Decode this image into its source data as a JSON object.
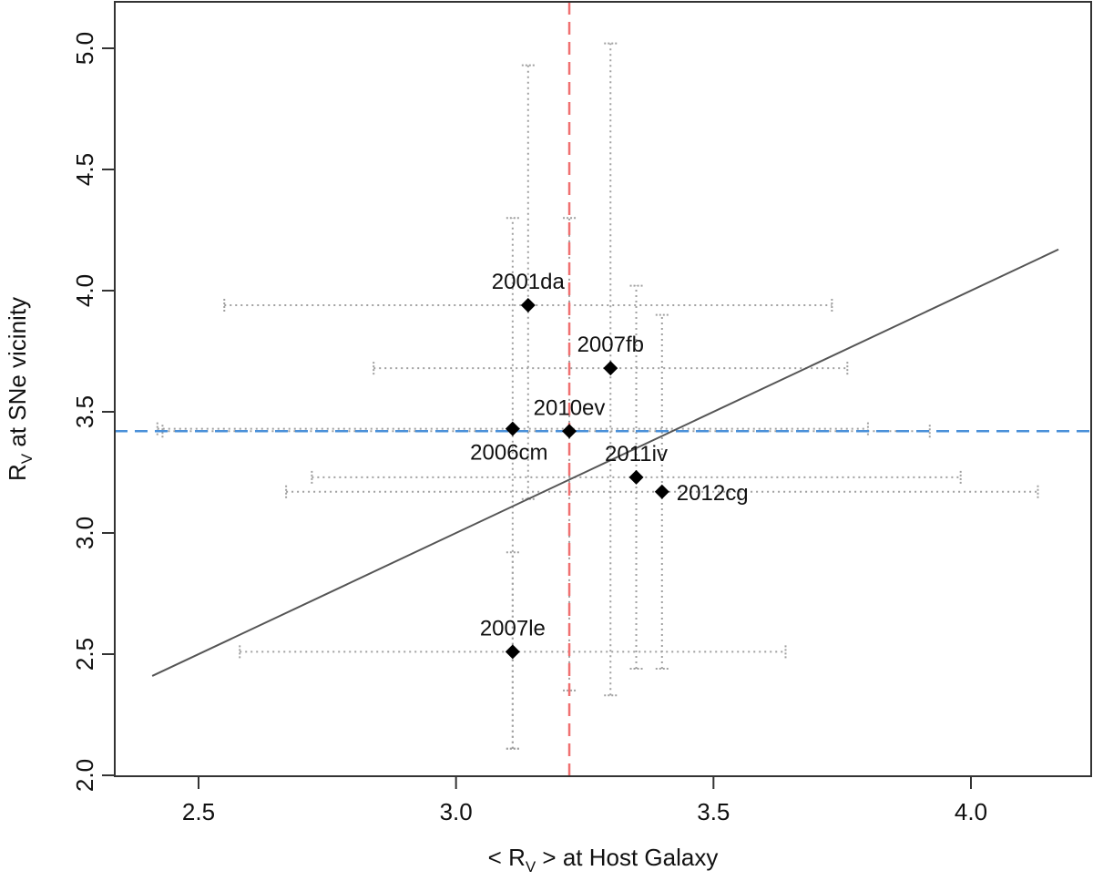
{
  "chart_data": {
    "type": "scatter",
    "title": "",
    "xlabel_parts": {
      "pre": "< R",
      "sub": "V",
      "post": " > at Host Galaxy"
    },
    "ylabel_parts": {
      "pre": "R",
      "sub": "V",
      "post": " at SNe vicinity"
    },
    "xlim": [
      2.35,
      4.25
    ],
    "ylim": [
      1.97,
      5.2
    ],
    "x_ticks": [
      2.5,
      3.0,
      3.5,
      4.0
    ],
    "x_tick_labels": [
      "2.5",
      "3.0",
      "3.5",
      "4.0"
    ],
    "y_ticks": [
      2.0,
      2.5,
      3.0,
      3.5,
      4.0,
      4.5,
      5.0
    ],
    "y_tick_labels": [
      "2.0",
      "2.5",
      "3.0",
      "3.5",
      "4.0",
      "4.5",
      "5.0"
    ],
    "grid": false,
    "legend": "none",
    "points": [
      {
        "label": "2001da",
        "x": 3.14,
        "y": 3.94,
        "xerr": [
          2.55,
          3.73
        ],
        "yerr": [
          3.14,
          4.93
        ],
        "label_pos": "above"
      },
      {
        "label": "2007fb",
        "x": 3.3,
        "y": 3.68,
        "xerr": [
          2.84,
          3.76
        ],
        "yerr": [
          2.33,
          5.02
        ],
        "label_pos": "above"
      },
      {
        "label": "2010ev",
        "x": 3.22,
        "y": 3.42,
        "xerr": [
          2.43,
          3.92
        ],
        "yerr": [
          2.35,
          4.3
        ],
        "label_pos": "above"
      },
      {
        "label": "2006cm",
        "x": 3.11,
        "y": 3.43,
        "xerr": [
          2.42,
          3.8
        ],
        "yerr": [
          2.11,
          4.3
        ],
        "label_pos": "below"
      },
      {
        "label": "2011iv",
        "x": 3.35,
        "y": 3.23,
        "xerr": [
          2.72,
          3.98
        ],
        "yerr": [
          2.44,
          4.02
        ],
        "label_pos": "above"
      },
      {
        "label": "2012cg",
        "x": 3.4,
        "y": 3.17,
        "xerr": [
          2.67,
          4.13
        ],
        "yerr": [
          2.44,
          3.9
        ],
        "label_pos": "right"
      },
      {
        "label": "2007le",
        "x": 3.11,
        "y": 2.51,
        "xerr": [
          2.58,
          3.64
        ],
        "yerr": [
          2.11,
          2.92
        ],
        "label_pos": "above"
      }
    ],
    "fit_line": {
      "x": [
        2.41,
        4.17
      ],
      "y": [
        2.41,
        4.17
      ]
    },
    "vline": {
      "x": 3.22
    },
    "hline": {
      "y": 3.42
    },
    "colors": {
      "points": "#000000",
      "error_bars": "#a0a0a0",
      "fit_line": "#555555",
      "vline": "#f07070",
      "hline": "#4a90d9",
      "axes": "#333333"
    }
  }
}
